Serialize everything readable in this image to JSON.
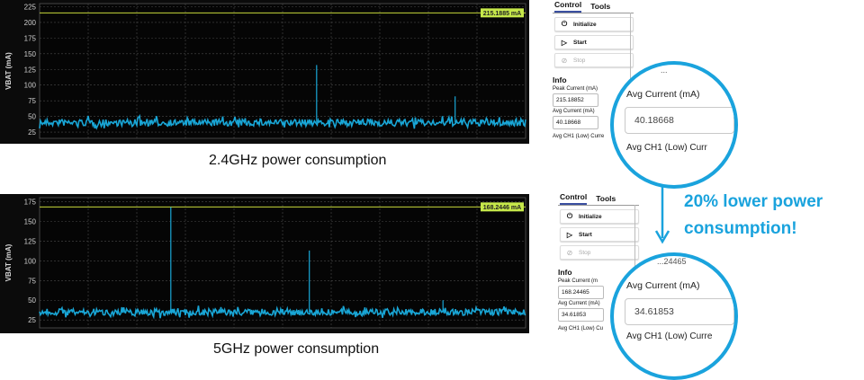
{
  "accent_color": "#1aa3dd",
  "trace_color": "#19a6d6",
  "plots": [
    {
      "ylabel": "VBAT (mA)",
      "yticks": [
        "225",
        "200",
        "175",
        "150",
        "125",
        "100",
        "75",
        "50",
        "25"
      ],
      "peak_label": "215.1885 mA",
      "caption": "2.4GHz power consumption",
      "chart_data": {
        "type": "line",
        "ylim": [
          15,
          230
        ],
        "baseline_mA": 40,
        "peak_line_mA": 215.1885,
        "spikes": [
          {
            "x_frac": 0.57,
            "value": 132
          },
          {
            "x_frac": 0.855,
            "value": 82
          }
        ]
      }
    },
    {
      "ylabel": "VBAT (mA)",
      "yticks": [
        "175",
        "150",
        "125",
        "100",
        "75",
        "50",
        "25"
      ],
      "peak_label": "168.2446 mA",
      "caption": "5GHz power consumption",
      "chart_data": {
        "type": "line",
        "ylim": [
          15,
          180
        ],
        "baseline_mA": 35,
        "peak_line_mA": 168.2446,
        "spikes": [
          {
            "x_frac": 0.27,
            "value": 168
          },
          {
            "x_frac": 0.555,
            "value": 113
          },
          {
            "x_frac": 0.83,
            "value": 50
          }
        ]
      }
    }
  ],
  "panels": [
    {
      "tabs": [
        "Control",
        "Tools"
      ],
      "buttons": {
        "init": "Initialize",
        "start": "Start",
        "stop": "Stop"
      },
      "info_title": "Info",
      "peak_label": "Peak Current (mA)",
      "peak_value": "215.18852",
      "avg_label": "Avg Current (mA)",
      "avg_value": "40.18668",
      "ch1_label": "Avg CH1 (Low) Curre",
      "zoom": {
        "top": "...",
        "avg_label": "Avg Current (mA)",
        "avg_value": "40.18668",
        "ch1_label": "Avg CH1 (Low) Curr"
      }
    },
    {
      "tabs": [
        "Control",
        "Tools"
      ],
      "buttons": {
        "init": "Initialize",
        "start": "Start",
        "stop": "Stop"
      },
      "info_title": "Info",
      "peak_label": "Peak Current (m",
      "peak_value": "168.24465",
      "avg_label": "Avg Current (mA)",
      "avg_value": "34.61853",
      "ch1_label": "Avg CH1 (Low) Cu",
      "zoom": {
        "top": "...24465",
        "avg_label": "Avg Current (mA)",
        "avg_value": "34.61853",
        "ch1_label": "Avg CH1 (Low) Curre"
      }
    }
  ],
  "callout": {
    "line1": "20% lower power",
    "line2": "consumption!"
  }
}
